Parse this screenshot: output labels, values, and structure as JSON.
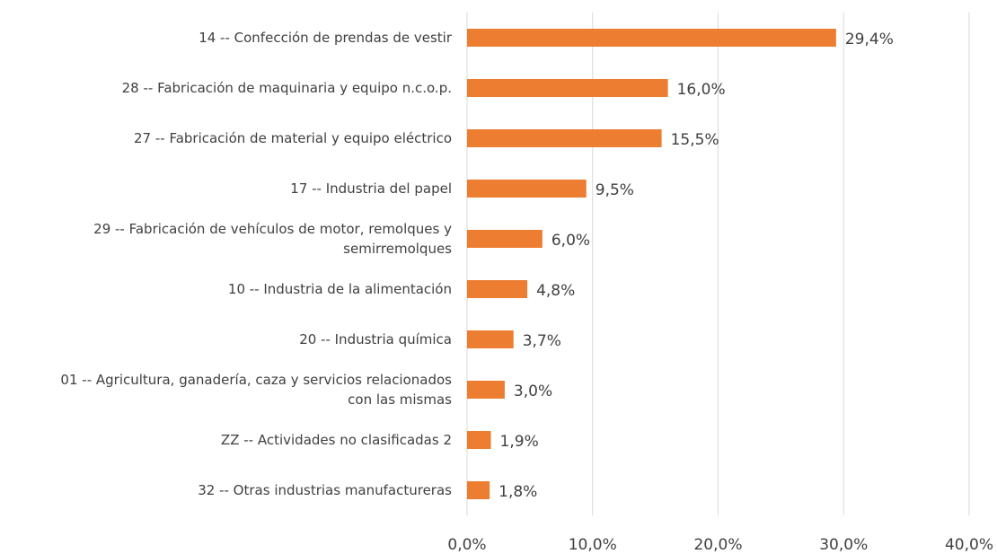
{
  "chart_data": {
    "type": "barh",
    "categories": [
      "14 -- Confección de prendas de vestir",
      "28 -- Fabricación de maquinaria y equipo n.c.o.p.",
      "27 -- Fabricación de material y equipo eléctrico",
      "17 -- Industria del papel",
      "29 -- Fabricación de vehículos de motor, remolques y\nsemirremolques",
      "10 -- Industria de la alimentación",
      "20 -- Industria química",
      "01 -- Agricultura, ganadería, caza y servicios relacionados\ncon las mismas",
      "ZZ -- Actividades no clasificadas 2",
      "32 -- Otras industrias manufactureras"
    ],
    "values": [
      29.4,
      16.0,
      15.5,
      9.5,
      6.0,
      4.8,
      3.7,
      3.0,
      1.9,
      1.8
    ],
    "value_labels": [
      "29,4%",
      "16,0%",
      "15,5%",
      "9,5%",
      "6,0%",
      "4,8%",
      "3,7%",
      "3,0%",
      "1,9%",
      "1,8%"
    ],
    "color": "#ed7d31",
    "xlim": [
      0,
      40
    ],
    "xticks": [
      {
        "value": 0,
        "label": "0,0%"
      },
      {
        "value": 10,
        "label": "10,0%"
      },
      {
        "value": 20,
        "label": "20,0%"
      },
      {
        "value": 30,
        "label": "30,0%"
      },
      {
        "value": 40,
        "label": "40,0%"
      }
    ],
    "grid": true
  }
}
